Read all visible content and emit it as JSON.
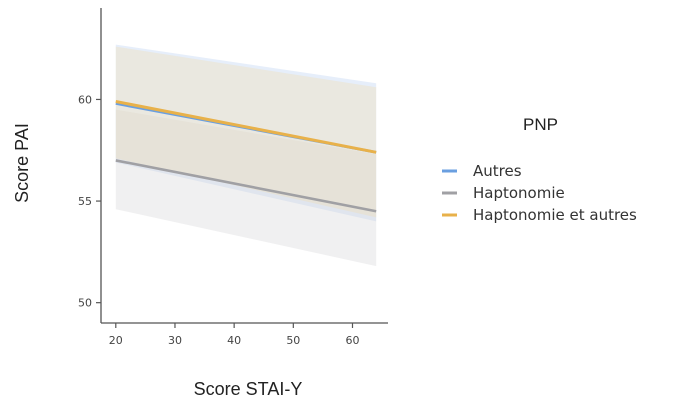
{
  "chart_data": {
    "type": "line",
    "xlabel": "Score STAI-Y",
    "ylabel": "Score PAI",
    "xlim": [
      17.5,
      66
    ],
    "ylim": [
      49,
      64.5
    ],
    "x_ticks": [
      20,
      30,
      40,
      50,
      60
    ],
    "y_ticks": [
      50,
      55,
      60
    ],
    "grid": false,
    "legend": {
      "title": "PNP",
      "position": "right"
    },
    "series": [
      {
        "name": "Autres",
        "color": "#6a9fe0",
        "band_color": "#b8cff2",
        "x": [
          20,
          64
        ],
        "y": [
          59.8,
          57.4
        ],
        "ci_lower": [
          56.9,
          54.0
        ],
        "ci_upper": [
          62.7,
          60.8
        ]
      },
      {
        "name": "Haptonomie",
        "color": "#a0a0a4",
        "band_color": "#d4d4d8",
        "x": [
          20,
          64
        ],
        "y": [
          57.0,
          54.5
        ],
        "ci_lower": [
          54.6,
          51.8
        ],
        "ci_upper": [
          59.5,
          57.3
        ]
      },
      {
        "name": "Haptonomie et autres",
        "color": "#e8b14a",
        "band_color": "#f0dcb0",
        "x": [
          20,
          64
        ],
        "y": [
          59.9,
          57.4
        ],
        "ci_lower": [
          57.1,
          54.2
        ],
        "ci_upper": [
          62.6,
          60.6
        ]
      }
    ]
  }
}
